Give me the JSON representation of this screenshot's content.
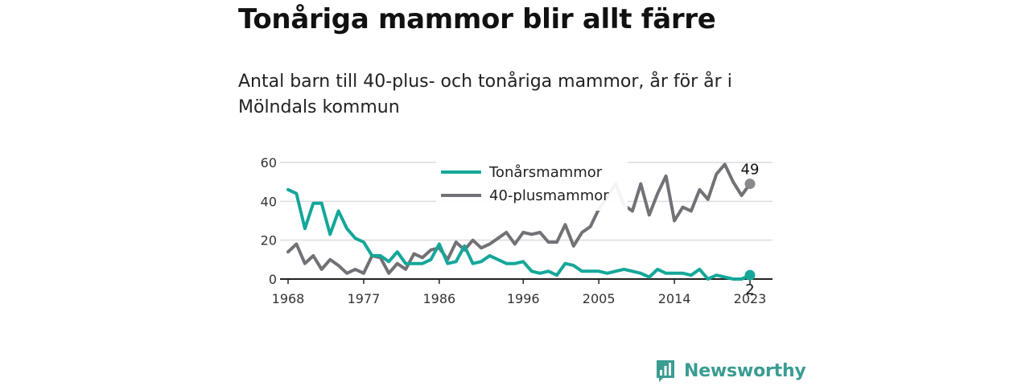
{
  "title": "Tonåriga mammor blir allt färre",
  "subtitle": "Antal barn till 40-plus- och tonåriga mammor, år för år i Mölndals kommun",
  "brand": {
    "name": "Newsworthy",
    "color": "#3a9c92"
  },
  "chart_data": {
    "type": "line",
    "x_ticks": [
      "1968",
      "1977",
      "1986",
      "1996",
      "2005",
      "2014",
      "2023"
    ],
    "y_ticks": [
      "0",
      "20",
      "40",
      "60"
    ],
    "ylim": [
      0,
      60
    ],
    "xlim": [
      1968,
      2023
    ],
    "grid": true,
    "legend_position": "top-center",
    "x": [
      1968,
      1969,
      1970,
      1971,
      1972,
      1973,
      1974,
      1975,
      1976,
      1977,
      1978,
      1979,
      1980,
      1981,
      1982,
      1983,
      1984,
      1985,
      1986,
      1987,
      1988,
      1989,
      1990,
      1991,
      1992,
      1993,
      1994,
      1995,
      1996,
      1997,
      1998,
      1999,
      2000,
      2001,
      2002,
      2003,
      2004,
      2005,
      2006,
      2007,
      2008,
      2009,
      2010,
      2011,
      2012,
      2013,
      2014,
      2015,
      2016,
      2017,
      2018,
      2019,
      2020,
      2021,
      2022,
      2023
    ],
    "series": [
      {
        "name": "Tonårsmammor",
        "color": "#14a79a",
        "values": [
          46,
          44,
          26,
          39,
          39,
          23,
          35,
          26,
          21,
          19,
          12,
          12,
          9,
          14,
          8,
          8,
          8,
          10,
          18,
          8,
          9,
          17,
          8,
          9,
          12,
          10,
          8,
          8,
          9,
          4,
          3,
          4,
          2,
          8,
          7,
          4,
          4,
          4,
          3,
          4,
          5,
          4,
          3,
          1,
          5,
          3,
          3,
          3,
          2,
          5,
          0,
          2,
          1,
          0,
          0,
          2
        ],
        "end_label": "2"
      },
      {
        "name": "40-plusmammor",
        "color": "#727176",
        "values": [
          14,
          18,
          8,
          12,
          5,
          10,
          7,
          3,
          5,
          3,
          12,
          11,
          3,
          8,
          5,
          13,
          11,
          15,
          16,
          10,
          19,
          15,
          20,
          16,
          18,
          21,
          24,
          18,
          24,
          23,
          24,
          19,
          19,
          28,
          17,
          24,
          27,
          36,
          42,
          49,
          38,
          35,
          49,
          33,
          44,
          53,
          30,
          37,
          35,
          46,
          41,
          54,
          59,
          50,
          43,
          49
        ],
        "end_label": "49"
      }
    ]
  }
}
